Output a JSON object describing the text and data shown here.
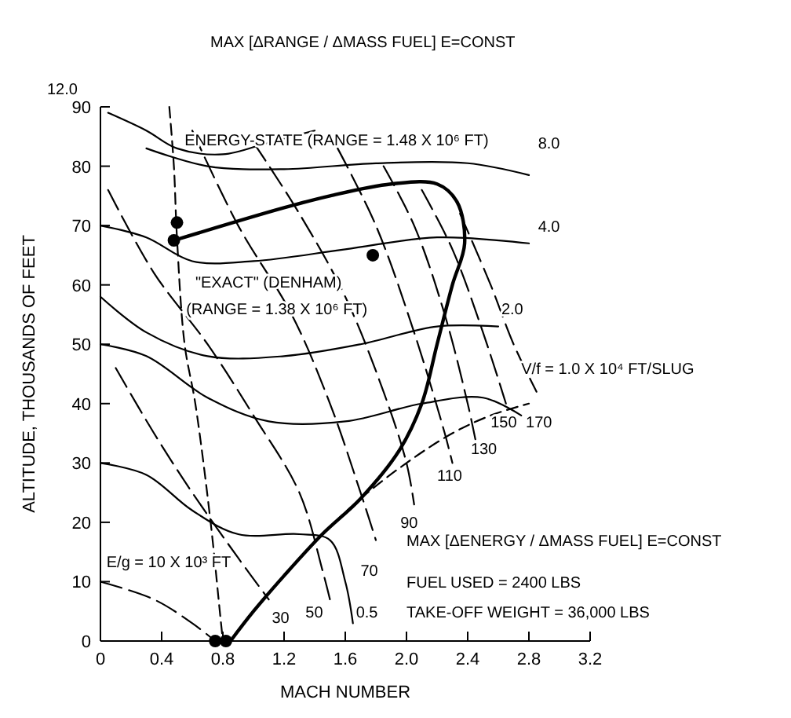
{
  "chart_data": {
    "type": "line",
    "xlabel": "MACH NUMBER",
    "ylabel": "ALTITUDE, THOUSANDS OF FEET",
    "xlim": [
      0,
      3.2
    ],
    "ylim": [
      0,
      90
    ],
    "xticks": [
      0,
      0.4,
      0.8,
      1.2,
      1.6,
      {
        "value": 2,
        "label": "2.0"
      },
      2.4,
      2.8,
      3.2
    ],
    "yticks": [
      0,
      10,
      20,
      30,
      40,
      50,
      60,
      70,
      80,
      90
    ],
    "grid": false,
    "series": [
      {
        "color": "#000000",
        "line_style": "solid",
        "x": [
          0.85,
          1.0,
          1.2,
          1.45,
          1.7,
          1.95,
          2.1,
          2.2,
          2.3,
          2.38,
          2.33,
          2.2,
          1.9,
          1.5,
          1.2,
          0.48
        ],
        "values": [
          0,
          5,
          11,
          18,
          24,
          32,
          40,
          50,
          60,
          67,
          74,
          77,
          77,
          75,
          73,
          67.5
        ]
      },
      {
        "color": "#000000",
        "line_style": "dashed",
        "x": [
          0.45,
          0.48,
          0.5,
          0.55,
          0.62,
          0.72,
          0.78,
          0.8
        ],
        "values": [
          90,
          80,
          68,
          50,
          40,
          20,
          5,
          0
        ]
      },
      {
        "color": "#000000",
        "line_style": "dashed",
        "x": [
          1.45,
          1.7,
          2.0,
          2.3,
          2.55,
          2.8
        ],
        "values": [
          18,
          24,
          30,
          35,
          38,
          40
        ]
      },
      {
        "color": "#000000",
        "line_style": "solid",
        "x": [
          0.05,
          0.3,
          0.5,
          0.8,
          1.1,
          1.4
        ],
        "values": [
          89,
          86,
          83,
          82,
          84,
          86
        ]
      },
      {
        "color": "#000000",
        "line_style": "solid",
        "x": [
          0.3,
          0.7,
          1.2,
          1.8,
          2.4,
          2.8
        ],
        "values": [
          83,
          80,
          79.5,
          80.5,
          80.5,
          78.5
        ]
      },
      {
        "color": "#000000",
        "line_style": "solid",
        "x": [
          0,
          0.3,
          0.6,
          1.0,
          1.6,
          2.2,
          2.8
        ],
        "values": [
          70,
          68,
          64,
          64,
          66,
          68,
          67
        ]
      },
      {
        "color": "#000000",
        "line_style": "solid",
        "x": [
          0,
          0.3,
          0.7,
          1.2,
          1.7,
          2.2,
          2.6
        ],
        "values": [
          58,
          52,
          48,
          48,
          50,
          53,
          53
        ]
      },
      {
        "color": "#000000",
        "line_style": "solid",
        "x": [
          0,
          0.3,
          0.7,
          1.1,
          1.6,
          2.1,
          2.5,
          2.75
        ],
        "values": [
          50,
          48,
          41,
          37,
          37,
          40,
          41,
          38
        ]
      },
      {
        "color": "#000000",
        "line_style": "solid",
        "x": [
          0,
          0.3,
          0.6,
          0.9,
          1.3,
          1.5,
          1.6,
          1.65
        ],
        "values": [
          30,
          28,
          22,
          18,
          18,
          17,
          10,
          3
        ]
      },
      {
        "color": "#000000",
        "line_style": "longdash",
        "x": [
          0,
          0.35,
          0.6,
          0.75
        ],
        "values": [
          10,
          7,
          3,
          0
        ]
      },
      {
        "color": "#000000",
        "line_style": "longdash",
        "x": [
          0.1,
          0.35,
          0.6,
          0.9,
          1.1
        ],
        "values": [
          46,
          35,
          25,
          14,
          7
        ]
      },
      {
        "color": "#000000",
        "line_style": "longdash",
        "x": [
          0.05,
          0.35,
          0.7,
          1.0,
          1.3,
          1.45,
          1.5
        ],
        "values": [
          76,
          62,
          50,
          38,
          25,
          12,
          7
        ]
      },
      {
        "color": "#000000",
        "line_style": "longdash",
        "x": [
          0.6,
          0.9,
          1.25,
          1.5,
          1.7,
          1.8
        ],
        "values": [
          86,
          70,
          55,
          40,
          25,
          17
        ]
      },
      {
        "color": "#000000",
        "line_style": "longdash",
        "x": [
          1.0,
          1.3,
          1.6,
          1.85,
          2.0,
          2.05
        ],
        "values": [
          84,
          72,
          58,
          42,
          30,
          23
        ]
      },
      {
        "color": "#000000",
        "line_style": "longdash",
        "x": [
          1.55,
          1.8,
          2.05,
          2.25,
          2.3
        ],
        "values": [
          83,
          70,
          52,
          35,
          30
        ]
      },
      {
        "color": "#000000",
        "line_style": "longdash",
        "x": [
          1.85,
          2.05,
          2.25,
          2.4,
          2.45
        ],
        "values": [
          80,
          70,
          55,
          40,
          34
        ]
      },
      {
        "color": "#000000",
        "line_style": "longdash",
        "x": [
          2.1,
          2.3,
          2.5,
          2.65
        ],
        "values": [
          76,
          66,
          52,
          40
        ]
      },
      {
        "color": "#000000",
        "line_style": "longdash",
        "x": [
          2.35,
          2.55,
          2.7,
          2.85
        ],
        "values": [
          72,
          60,
          50,
          42
        ]
      },
      {
        "type": "scatter",
        "color": "#000000",
        "marker": "circle",
        "x": [
          0.48,
          0.5,
          1.78,
          0.75,
          0.82
        ],
        "values": [
          67.5,
          70.5,
          65,
          0,
          0
        ]
      }
    ],
    "annotations": [
      "12.0",
      "MAX [ΔRANGE / ΔMASS FUEL] E=CONST",
      "8.0",
      "4.0",
      "2.0",
      "V/f = 1.0 X 10⁴ FT/SLUG",
      "0.5",
      "ENERGY-STATE (RANGE = 1.48 X 10⁶ FT)",
      "\"EXACT\" (DENHAM)",
      "(RANGE = 1.38 X 10⁶ FT)",
      "E/g = 10 X 10³ FT",
      "30",
      "50",
      "70",
      "90",
      "110",
      "130",
      "150",
      "170",
      "MAX [ΔENERGY / ΔMASS FUEL] E=CONST",
      "FUEL USED = 2400 LBS",
      "TAKE-OFF WEIGHT = 36,000 LBS"
    ]
  }
}
